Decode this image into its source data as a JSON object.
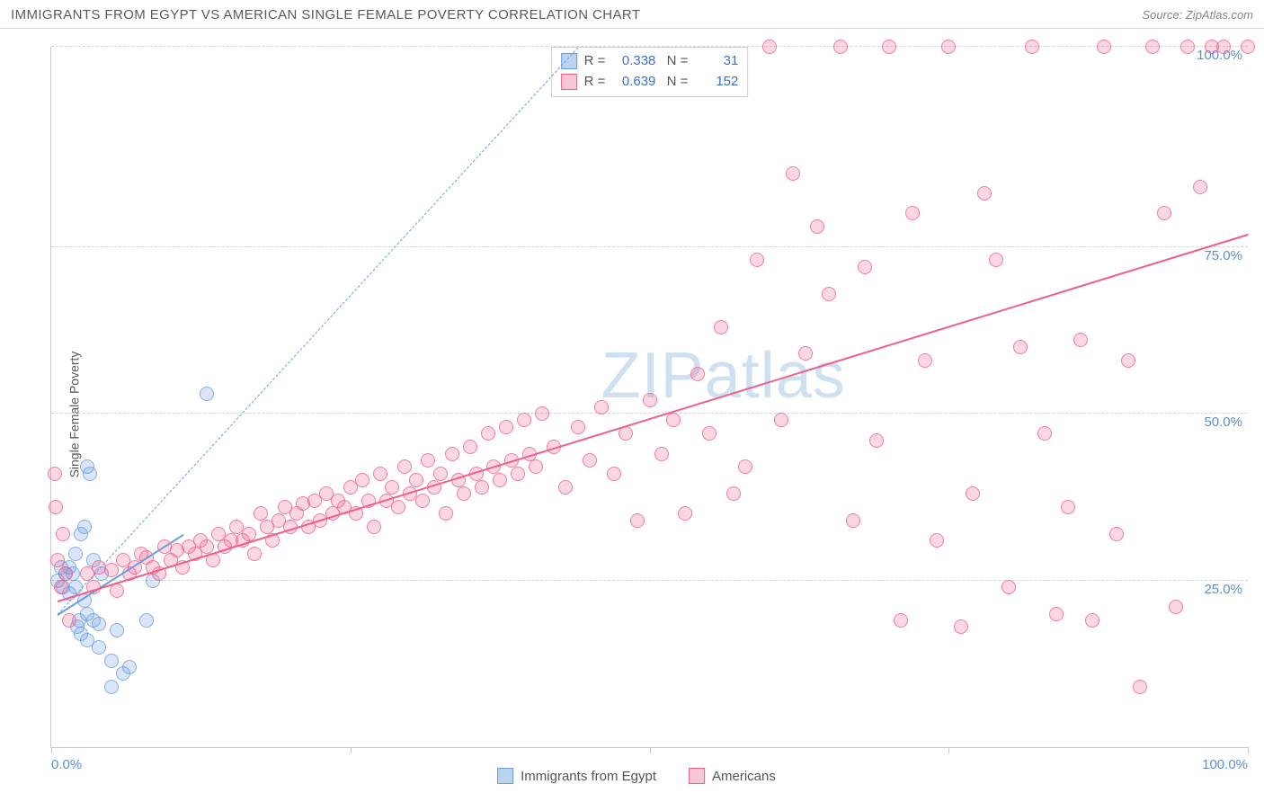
{
  "title": "IMMIGRANTS FROM EGYPT VS AMERICAN SINGLE FEMALE POVERTY CORRELATION CHART",
  "source_label": "Source: ZipAtlas.com",
  "ylabel": "Single Female Poverty",
  "watermark": {
    "bold": "ZIP",
    "light": "atlas",
    "color": "#cfe0f1"
  },
  "chart": {
    "type": "scatter",
    "xlim": [
      0,
      100
    ],
    "ylim": [
      0,
      105
    ],
    "x_ticks": [
      0,
      25,
      50,
      75,
      100
    ],
    "x_tick_labels": [
      "0.0%",
      "",
      "",
      "",
      "100.0%"
    ],
    "y_gridlines": [
      25,
      50,
      75,
      105
    ],
    "y_tick_labels": [
      "25.0%",
      "50.0%",
      "75.0%",
      "100.0%"
    ],
    "grid_color": "#d7d7d7",
    "axis_color": "#c9c9c9",
    "tick_label_color": "#5b8fd6",
    "background_color": "#ffffff",
    "marker_radius": 8,
    "marker_fill_opacity": 0.25,
    "marker_stroke_opacity": 0.75,
    "series": [
      {
        "name": "Immigrants from Egypt",
        "color": "#6a9de0",
        "swatch_fill": "#bcd3ef",
        "swatch_border": "#6a9de0",
        "R": "0.338",
        "N": "31",
        "trend": {
          "x1": 0.5,
          "y1": 20,
          "x2": 11,
          "y2": 32,
          "dash": false
        },
        "ref_line": {
          "x1": 0.5,
          "y1": 20,
          "x2": 44,
          "y2": 105,
          "dash": true
        },
        "points": [
          [
            0.5,
            25
          ],
          [
            0.8,
            27
          ],
          [
            1,
            24
          ],
          [
            1.2,
            26
          ],
          [
            1.5,
            23
          ],
          [
            1.5,
            27
          ],
          [
            1.8,
            26
          ],
          [
            2,
            24
          ],
          [
            2,
            29
          ],
          [
            2.2,
            18
          ],
          [
            2.3,
            19
          ],
          [
            2.5,
            17
          ],
          [
            2.5,
            32
          ],
          [
            2.8,
            33
          ],
          [
            2.8,
            22
          ],
          [
            3,
            16
          ],
          [
            3,
            20
          ],
          [
            3.5,
            19
          ],
          [
            3.5,
            28
          ],
          [
            4,
            18.5
          ],
          [
            4,
            15
          ],
          [
            4.2,
            26
          ],
          [
            5,
            13
          ],
          [
            5,
            9
          ],
          [
            5.5,
            17.5
          ],
          [
            6,
            11
          ],
          [
            6.5,
            12
          ],
          [
            8,
            19
          ],
          [
            8.5,
            25
          ],
          [
            3,
            42
          ],
          [
            3.2,
            41
          ],
          [
            13,
            53
          ]
        ]
      },
      {
        "name": "Americans",
        "color": "#ef5f8a",
        "swatch_fill": "#f7c7d5",
        "swatch_border": "#ef5f8a",
        "R": "0.639",
        "N": "152",
        "trend": {
          "x1": 0.5,
          "y1": 22,
          "x2": 100,
          "y2": 77,
          "dash": false
        },
        "points": [
          [
            0.3,
            41
          ],
          [
            0.4,
            36
          ],
          [
            0.5,
            28
          ],
          [
            0.8,
            24
          ],
          [
            1,
            32
          ],
          [
            1.2,
            26
          ],
          [
            1.5,
            19
          ],
          [
            3,
            26
          ],
          [
            3.5,
            24
          ],
          [
            4,
            27
          ],
          [
            5,
            26.5
          ],
          [
            5.5,
            23.5
          ],
          [
            6,
            28
          ],
          [
            6.5,
            26
          ],
          [
            7,
            27
          ],
          [
            7.5,
            29
          ],
          [
            8,
            28.5
          ],
          [
            8.5,
            27
          ],
          [
            9,
            26
          ],
          [
            9.5,
            30
          ],
          [
            10,
            28
          ],
          [
            10.5,
            29.5
          ],
          [
            11,
            27
          ],
          [
            11.5,
            30
          ],
          [
            12,
            29
          ],
          [
            12.5,
            31
          ],
          [
            13,
            30
          ],
          [
            13.5,
            28
          ],
          [
            14,
            32
          ],
          [
            14.5,
            30
          ],
          [
            15,
            31
          ],
          [
            15.5,
            33
          ],
          [
            16,
            31
          ],
          [
            16.5,
            32
          ],
          [
            17,
            29
          ],
          [
            17.5,
            35
          ],
          [
            18,
            33
          ],
          [
            18.5,
            31
          ],
          [
            19,
            34
          ],
          [
            19.5,
            36
          ],
          [
            20,
            33
          ],
          [
            20.5,
            35
          ],
          [
            21,
            36.5
          ],
          [
            21.5,
            33
          ],
          [
            22,
            37
          ],
          [
            22.5,
            34
          ],
          [
            23,
            38
          ],
          [
            23.5,
            35
          ],
          [
            24,
            37
          ],
          [
            24.5,
            36
          ],
          [
            25,
            39
          ],
          [
            25.5,
            35
          ],
          [
            26,
            40
          ],
          [
            26.5,
            37
          ],
          [
            27,
            33
          ],
          [
            27.5,
            41
          ],
          [
            28,
            37
          ],
          [
            28.5,
            39
          ],
          [
            29,
            36
          ],
          [
            29.5,
            42
          ],
          [
            30,
            38
          ],
          [
            30.5,
            40
          ],
          [
            31,
            37
          ],
          [
            31.5,
            43
          ],
          [
            32,
            39
          ],
          [
            32.5,
            41
          ],
          [
            33,
            35
          ],
          [
            33.5,
            44
          ],
          [
            34,
            40
          ],
          [
            34.5,
            38
          ],
          [
            35,
            45
          ],
          [
            35.5,
            41
          ],
          [
            36,
            39
          ],
          [
            36.5,
            47
          ],
          [
            37,
            42
          ],
          [
            37.5,
            40
          ],
          [
            38,
            48
          ],
          [
            38.5,
            43
          ],
          [
            39,
            41
          ],
          [
            39.5,
            49
          ],
          [
            40,
            44
          ],
          [
            40.5,
            42
          ],
          [
            41,
            50
          ],
          [
            42,
            45
          ],
          [
            43,
            39
          ],
          [
            44,
            48
          ],
          [
            45,
            43
          ],
          [
            46,
            51
          ],
          [
            47,
            41
          ],
          [
            48,
            47
          ],
          [
            49,
            34
          ],
          [
            50,
            52
          ],
          [
            51,
            44
          ],
          [
            52,
            49
          ],
          [
            53,
            35
          ],
          [
            54,
            56
          ],
          [
            55,
            47
          ],
          [
            56,
            63
          ],
          [
            57,
            38
          ],
          [
            58,
            42
          ],
          [
            59,
            73
          ],
          [
            60,
            105
          ],
          [
            61,
            49
          ],
          [
            62,
            86
          ],
          [
            63,
            59
          ],
          [
            64,
            78
          ],
          [
            65,
            68
          ],
          [
            66,
            105
          ],
          [
            67,
            34
          ],
          [
            68,
            72
          ],
          [
            69,
            46
          ],
          [
            70,
            105
          ],
          [
            71,
            19
          ],
          [
            72,
            80
          ],
          [
            73,
            58
          ],
          [
            74,
            31
          ],
          [
            75,
            105
          ],
          [
            76,
            18
          ],
          [
            77,
            38
          ],
          [
            78,
            83
          ],
          [
            79,
            73
          ],
          [
            80,
            24
          ],
          [
            81,
            60
          ],
          [
            82,
            105
          ],
          [
            83,
            47
          ],
          [
            84,
            20
          ],
          [
            85,
            36
          ],
          [
            86,
            61
          ],
          [
            87,
            19
          ],
          [
            88,
            105
          ],
          [
            89,
            32
          ],
          [
            90,
            58
          ],
          [
            91,
            9
          ],
          [
            92,
            105
          ],
          [
            93,
            80
          ],
          [
            94,
            21
          ],
          [
            95,
            105
          ],
          [
            96,
            84
          ],
          [
            97,
            105
          ],
          [
            98,
            105
          ],
          [
            100,
            105
          ]
        ]
      }
    ]
  },
  "legend_bottom": [
    {
      "label": "Immigrants from Egypt",
      "fill": "#bcd3ef",
      "border": "#6a9de0"
    },
    {
      "label": "Americans",
      "fill": "#f7c7d5",
      "border": "#ef5f8a"
    }
  ]
}
